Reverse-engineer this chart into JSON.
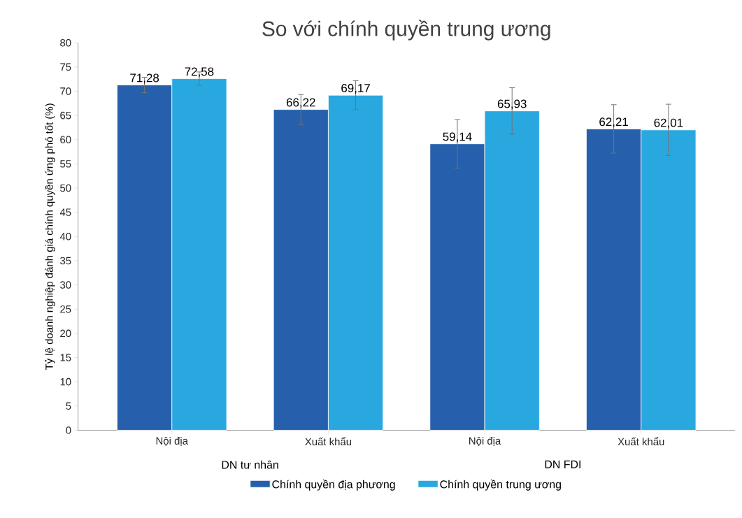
{
  "chart_data": {
    "type": "bar",
    "title": "So với chính quyền trung ương",
    "ylabel": "Tỷ lệ doanh nghiệp đánh giá chính quyền ứng phó tốt (%)",
    "categories": [
      "Nội địa",
      "Xuất khẩu",
      "Nội địa",
      "Xuất khẩu"
    ],
    "annotations": [
      "DN tư nhân",
      "DN FDI"
    ],
    "series": [
      {
        "name": "Chính quyền địa phương",
        "color": "#2660ac",
        "values": [
          71.28,
          66.22,
          59.14,
          62.21
        ],
        "errors": [
          1.6,
          3.1,
          5,
          5
        ],
        "value_labels": [
          "71,28",
          "66,22",
          "59,14",
          "62,21"
        ]
      },
      {
        "name": "Chính quyền trung ương",
        "color": "#29a8e0",
        "values": [
          72.58,
          69.17,
          65.93,
          62.01
        ],
        "errors": [
          1.4,
          3,
          4.8,
          5.3
        ],
        "value_labels": [
          "72,58",
          "69,17",
          "65,93",
          "62,01"
        ]
      }
    ],
    "ylim": [
      0,
      80
    ],
    "yticks": [
      0,
      5,
      10,
      15,
      20,
      25,
      30,
      35,
      40,
      45,
      50,
      55,
      60,
      65,
      70,
      75,
      80
    ],
    "legend": "bottom",
    "grid": false
  }
}
